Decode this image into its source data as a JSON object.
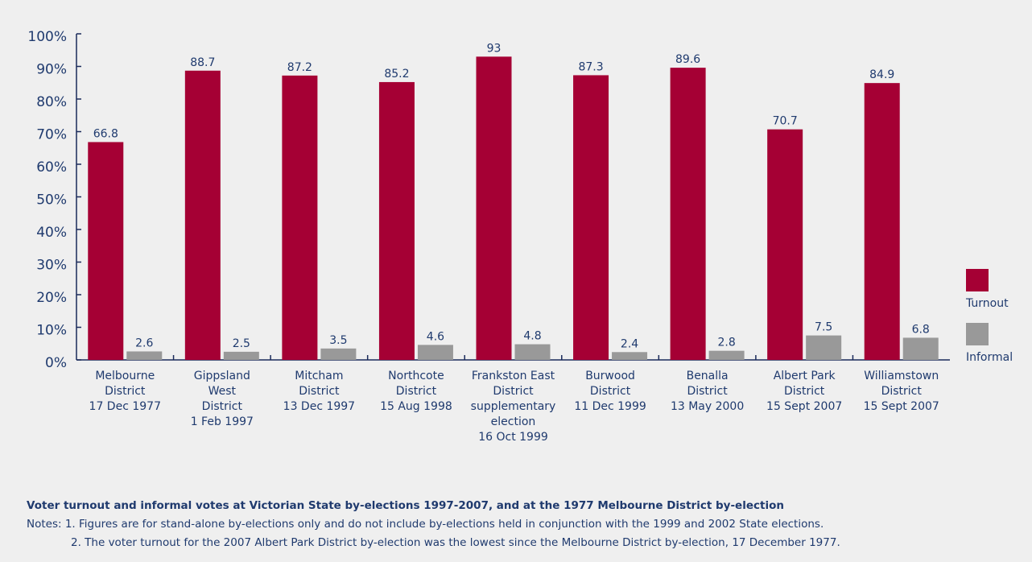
{
  "chart_data": {
    "type": "bar",
    "categories": [
      [
        "Melbourne",
        "District",
        "17 Dec 1977"
      ],
      [
        "Gippsland",
        "West",
        "District",
        "1 Feb 1997"
      ],
      [
        "Mitcham",
        "District",
        "13 Dec 1997"
      ],
      [
        "Northcote",
        "District",
        "15 Aug 1998"
      ],
      [
        "Frankston East",
        "District",
        "supplementary",
        "election",
        "16 Oct 1999"
      ],
      [
        "Burwood",
        "District",
        "11 Dec 1999"
      ],
      [
        "Benalla",
        "District",
        "13 May 2000"
      ],
      [
        "Albert Park",
        "District",
        "15 Sept 2007"
      ],
      [
        "Williamstown",
        "District",
        "15 Sept 2007"
      ]
    ],
    "series": [
      {
        "name": "Turnout",
        "color": "#a50034",
        "values": [
          66.8,
          88.7,
          87.2,
          85.2,
          93,
          87.3,
          89.6,
          70.7,
          84.9
        ]
      },
      {
        "name": "Informal",
        "color": "#999999",
        "values": [
          2.6,
          2.5,
          3.5,
          4.6,
          4.8,
          2.4,
          2.8,
          7.5,
          6.8
        ]
      }
    ],
    "ylim": [
      0,
      100
    ],
    "yticks": [
      {
        "value": 0,
        "label": "0%"
      },
      {
        "value": 10,
        "label": "10%"
      },
      {
        "value": 20,
        "label": "20%"
      },
      {
        "value": 30,
        "label": "30%"
      },
      {
        "value": 40,
        "label": "40%"
      },
      {
        "value": 50,
        "label": "50%"
      },
      {
        "value": 60,
        "label": "60%"
      },
      {
        "value": 70,
        "label": "70%"
      },
      {
        "value": 80,
        "label": "80%"
      },
      {
        "value": 90,
        "label": "90%"
      },
      {
        "value": 100,
        "label": "100%"
      }
    ],
    "caption": "Voter turnout and informal votes at Victorian State by-elections 1997-2007, and at the 1977 Melbourne District by-election",
    "notes": [
      "Notes: 1. Figures are for stand-alone by-elections only and do not include by-elections held in conjunction with the 1999 and 2002 State elections.",
      "2. The voter turnout for the 2007 Albert Park District by-election was the lowest since the Melbourne District by-election, 17 December 1977."
    ]
  }
}
